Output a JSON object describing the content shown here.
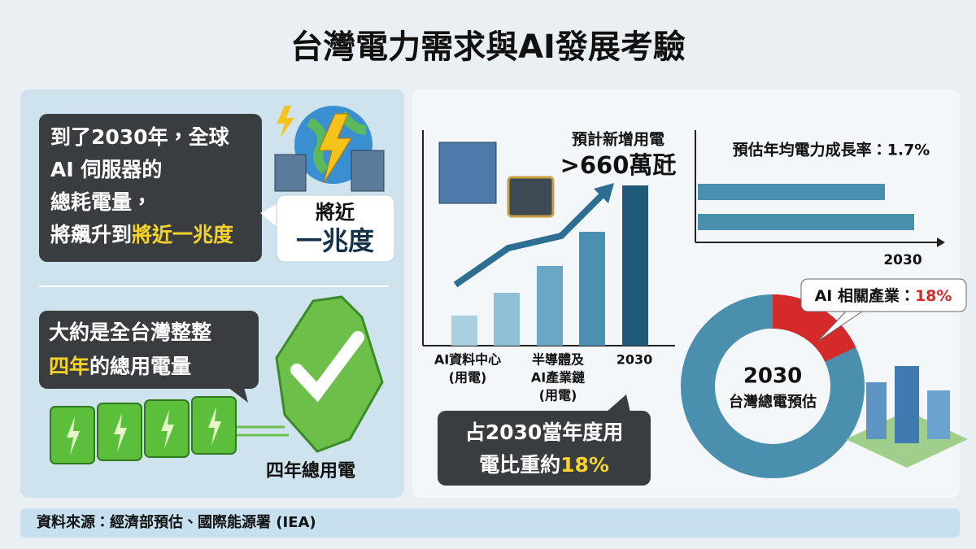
{
  "title": "台灣電力需求與AI發展考驗",
  "left_panel": {
    "claim_lines": [
      "到了2030年，全球",
      "AI 伺服器的",
      "總耗電量，",
      "將飆升到"
    ],
    "claim_highlight": "將近一兆度",
    "callout_lines": [
      "將近",
      "一兆度"
    ],
    "comparison_line": "大約是全台灣整整",
    "comparison_highlight": "四年",
    "comparison_rest": "的總用電量",
    "battery_label": "四年總用電"
  },
  "demand_chart": {
    "category_labels": [
      [
        "AI資料中心",
        "(用電)"
      ],
      [
        "半導體及",
        "AI產業鏈",
        "(用電)"
      ],
      [
        "2030"
      ]
    ],
    "headline": "預計新增用電",
    "value_label": ">660萬瓩",
    "summary_lines": [
      "占2030當年度用",
      "電比重約"
    ],
    "summary_highlight": "18%"
  },
  "growth": {
    "label": "預估年均電力成長率：1.7%",
    "year_label": "2030"
  },
  "donut": {
    "callout": "AI 相關產業：",
    "share": {
      "value": 18,
      "label": "18%"
    },
    "center_lines": [
      "2030",
      "台灣總電預估"
    ]
  },
  "source": "資料來源：經濟部預估、國際能源署 (IEA)"
}
